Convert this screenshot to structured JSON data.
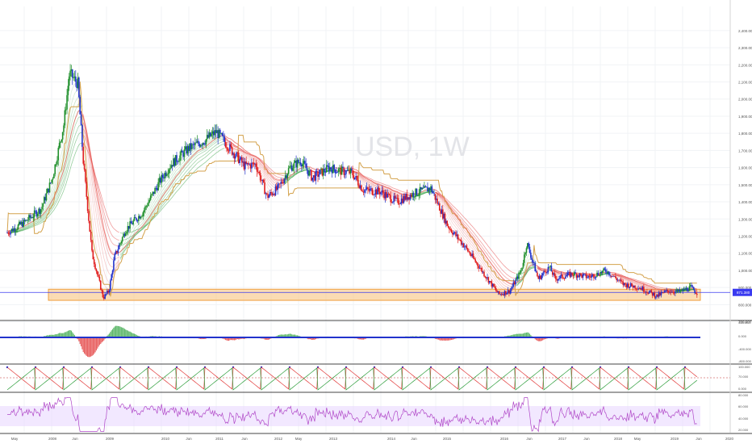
{
  "chart_data": {
    "type": "candlestick",
    "watermark": "USD, 1W",
    "price_scale": {
      "ticks": [
        "2,400.000",
        "2,300.000",
        "2,200.000",
        "2,100.000",
        "2,000.000",
        "1,900.000",
        "1,800.000",
        "1,700.000",
        "1,600.000",
        "1,500.000",
        "1,400.000",
        "1,300.000",
        "1,200.000",
        "1,100.000",
        "1,000.000",
        "900.000",
        "800.000",
        "700.000"
      ],
      "tick_values": [
        2400,
        2300,
        2200,
        2100,
        2000,
        1900,
        1800,
        1700,
        1600,
        1500,
        1400,
        1300,
        1200,
        1100,
        1000,
        900,
        800,
        700
      ],
      "ylim": [
        600,
        2450
      ]
    },
    "current_price": {
      "label": "871.380",
      "value": 871.38
    },
    "support_zone": {
      "low": 825,
      "high": 890
    },
    "time_axis": [
      "May",
      "2008",
      "Jun",
      "2009",
      "2010",
      "Jun",
      "2011",
      "Jun",
      "2012",
      "May",
      "2013",
      "2014",
      "Jun",
      "2015",
      "2016",
      "Jun",
      "2017",
      "Jun",
      "2018",
      "May",
      "2019",
      "Jun",
      "2020"
    ],
    "price_path": {
      "x_years": [
        2007.2,
        2007.5,
        2007.8,
        2008.0,
        2008.2,
        2008.3,
        2008.45,
        2008.55,
        2008.7,
        2008.9,
        2009.0,
        2009.1,
        2009.3,
        2009.6,
        2009.9,
        2010.1,
        2010.4,
        2010.7,
        2010.9,
        2011.1,
        2011.4,
        2011.6,
        2011.8,
        2012.0,
        2012.2,
        2012.4,
        2012.6,
        2012.9,
        2013.1,
        2013.3,
        2013.5,
        2013.8,
        2014.1,
        2014.4,
        2014.7,
        2015.0,
        2015.3,
        2015.6,
        2015.9,
        2016.1,
        2016.3,
        2016.4,
        2016.6,
        2016.8,
        2016.9,
        2017.2,
        2017.5,
        2017.8,
        2018.1,
        2018.4,
        2018.7,
        2018.9,
        2019.1,
        2019.3,
        2019.4
      ],
      "values": [
        1220,
        1280,
        1360,
        1540,
        1850,
        2150,
        2090,
        1620,
        1100,
        840,
        880,
        1080,
        1240,
        1340,
        1520,
        1620,
        1710,
        1760,
        1810,
        1730,
        1610,
        1620,
        1430,
        1480,
        1600,
        1640,
        1540,
        1600,
        1580,
        1570,
        1470,
        1460,
        1400,
        1450,
        1480,
        1260,
        1140,
        1000,
        860,
        880,
        1000,
        1160,
        950,
        1020,
        950,
        980,
        960,
        1000,
        920,
        900,
        850,
        880,
        875,
        900,
        871
      ]
    },
    "macd_scale": {
      "ticks": [
        "400.000",
        "0.000",
        "-400.000",
        "-800.000"
      ],
      "ylim": [
        -800,
        600
      ]
    },
    "stoch_scale": {
      "ticks": [
        "100.000",
        "70.000",
        "0.000"
      ],
      "ylim": [
        0,
        100
      ]
    },
    "rsi_scale": {
      "ticks": [
        "80.000",
        "60.000",
        "40.000",
        "20.000"
      ],
      "ylim": [
        20,
        80
      ]
    }
  }
}
